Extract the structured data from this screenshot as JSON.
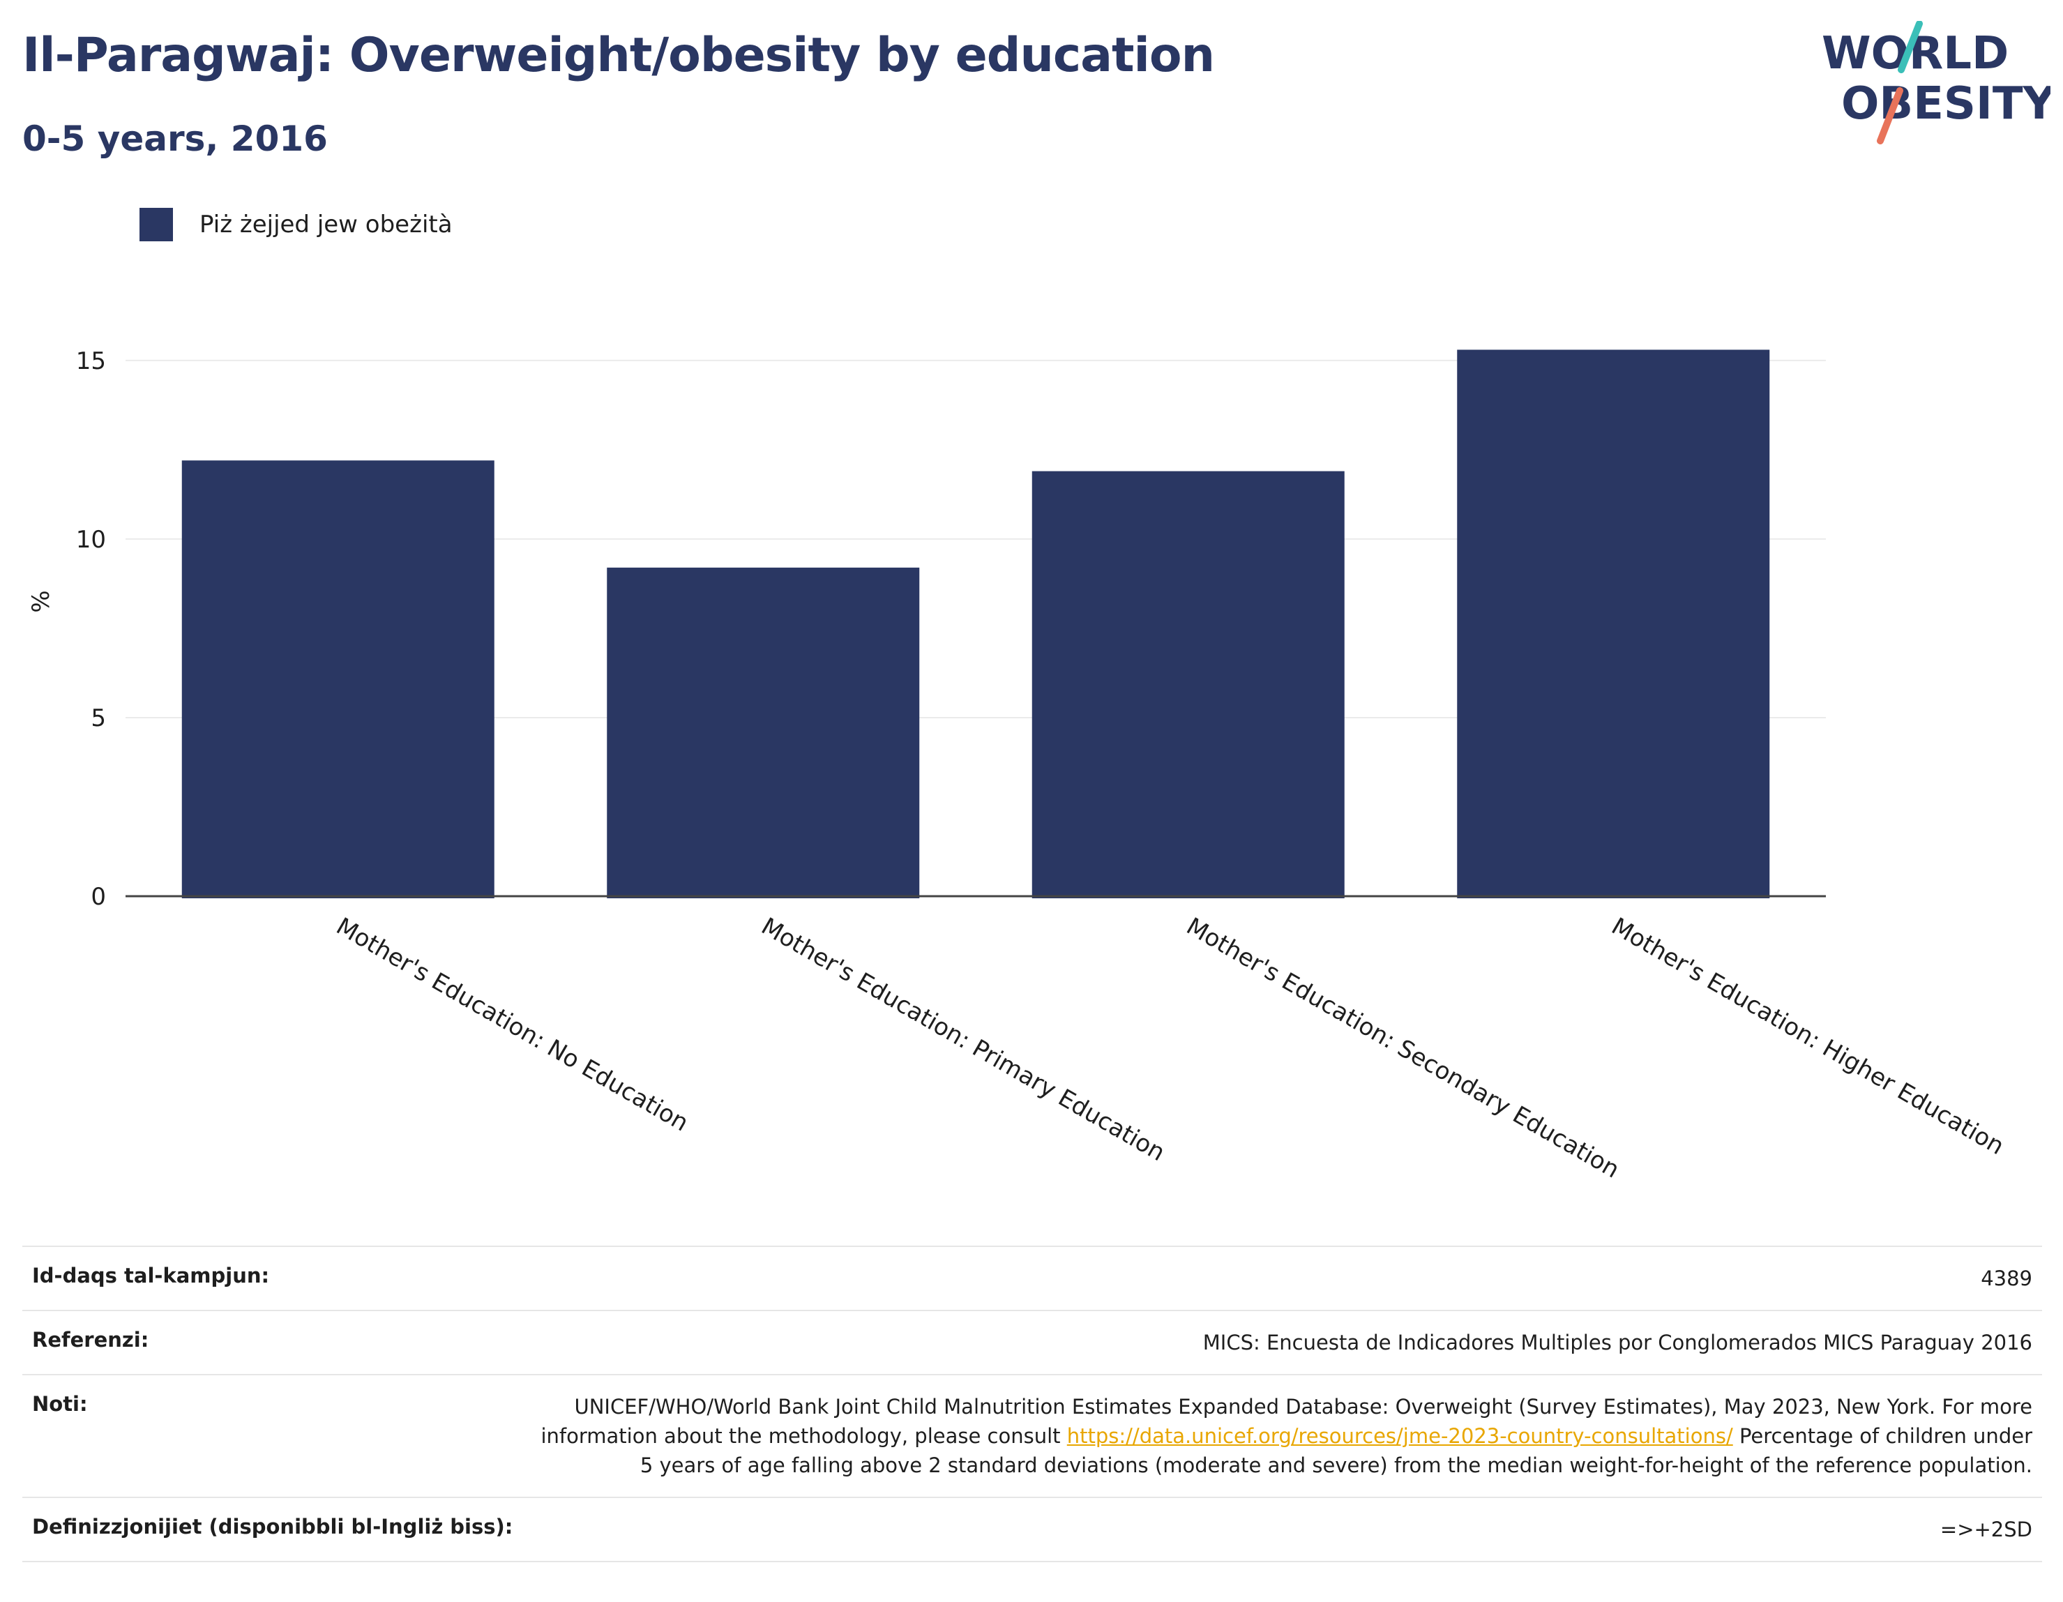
{
  "header": {
    "title": "Il-Paragwaj: Overweight/obesity by education",
    "subtitle": "0-5 years, 2016"
  },
  "logo": {
    "line1": "WORLD",
    "line2": "OBESITY",
    "colors": {
      "text": "#2a3763",
      "slash_top": "#3bbfb8",
      "slash_bottom": "#e8735a"
    }
  },
  "chart_data": {
    "type": "bar",
    "categories": [
      "Mother's Education: No Education",
      "Mother's Education: Primary Education",
      "Mother's Education: Secondary Education",
      "Mother's Education: Higher Education"
    ],
    "series": [
      {
        "name": "Piż żejjed jew obeżità",
        "values": [
          12.2,
          9.2,
          11.9,
          15.3
        ],
        "color": "#2a3763"
      }
    ],
    "ylabel": "%",
    "ylim": [
      0,
      16.5
    ],
    "yticks": [
      0,
      5,
      10,
      15
    ],
    "grid": true,
    "legend_position": "top-left"
  },
  "footer": {
    "rows": [
      {
        "label": "Id-daqs tal-kampjun:",
        "value": "4389"
      },
      {
        "label": "Referenzi:",
        "value": "MICS: Encuesta de Indicadores Multiples por Conglomerados MICS Paraguay 2016"
      },
      {
        "label": "Noti:",
        "value_before": "UNICEF/WHO/World Bank Joint Child Malnutrition Estimates Expanded Database: Overweight (Survey Estimates), May 2023, New York. For more information about the methodology, please consult",
        "link": "https://data.unicef.org/resources/jme-2023-country-consultations/",
        "value_after": "Percentage of children under 5 years of age falling above 2 standard deviations (moderate and severe) from the median weight-for-height of the reference population."
      },
      {
        "label": "Definizzjonijiet (disponibbli bl-Ingliż biss):",
        "value": "=>+2SD"
      }
    ]
  }
}
